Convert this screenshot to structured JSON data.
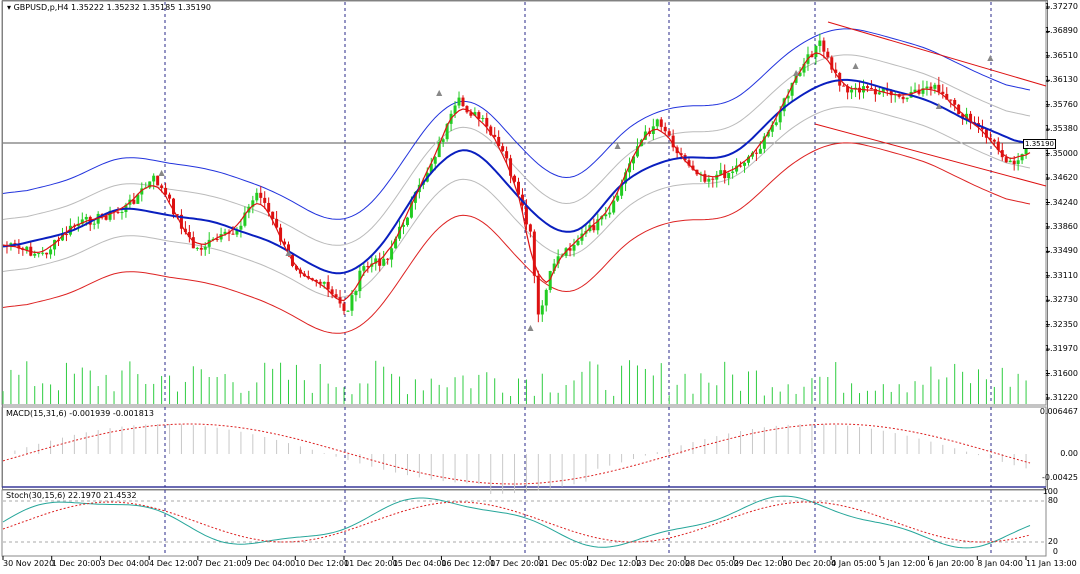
{
  "main": {
    "title": "GBPUSD,p,H4 1.35222 1.35232 1.35185 1.35190",
    "current_price": "1.35190",
    "price_labels": [
      "1.37270",
      "1.36890",
      "1.36510",
      "1.36130",
      "1.35760",
      "1.35380",
      "1.35000",
      "1.34620",
      "1.34240",
      "1.33860",
      "1.33490",
      "1.33110",
      "1.32730",
      "1.32350",
      "1.31970",
      "1.31600",
      "1.31220"
    ]
  },
  "macd": {
    "title": "MACD(15,31,6) -0.001939 -0.001813",
    "labels": [
      "0.006467",
      "0.00",
      "-0.00425"
    ]
  },
  "stoch": {
    "title": "Stoch(30,15,6) 22.1970 21.4532",
    "labels": [
      "100",
      "80",
      "20",
      "0"
    ]
  },
  "time_labels": [
    "30 Nov 2020",
    "1 Dec 20:00",
    "3 Dec 04:00",
    "4 Dec 12:00",
    "7 Dec 21:00",
    "9 Dec 04:00",
    "10 Dec 12:00",
    "11 Dec 20:00",
    "15 Dec 04:00",
    "16 Dec 12:00",
    "17 Dec 20:00",
    "21 Dec 05:00",
    "22 Dec 12:00",
    "23 Dec 20:00",
    "28 Dec 05:00",
    "29 Dec 12:00",
    "30 Dec 20:00",
    "4 Jan 05:00",
    "5 Jan 12:00",
    "6 Jan 20:00",
    "8 Jan 04:00",
    "11 Jan 13:00"
  ],
  "colors": {
    "bull": "#22cc22",
    "bear": "#dd1111",
    "ma_mid": "#0a1fbf",
    "band_outer_up": "#2233dd",
    "band_outer_dn": "#dd2222",
    "ma_fast": "#dd1111",
    "stoch_main": "#26a69a"
  }
}
